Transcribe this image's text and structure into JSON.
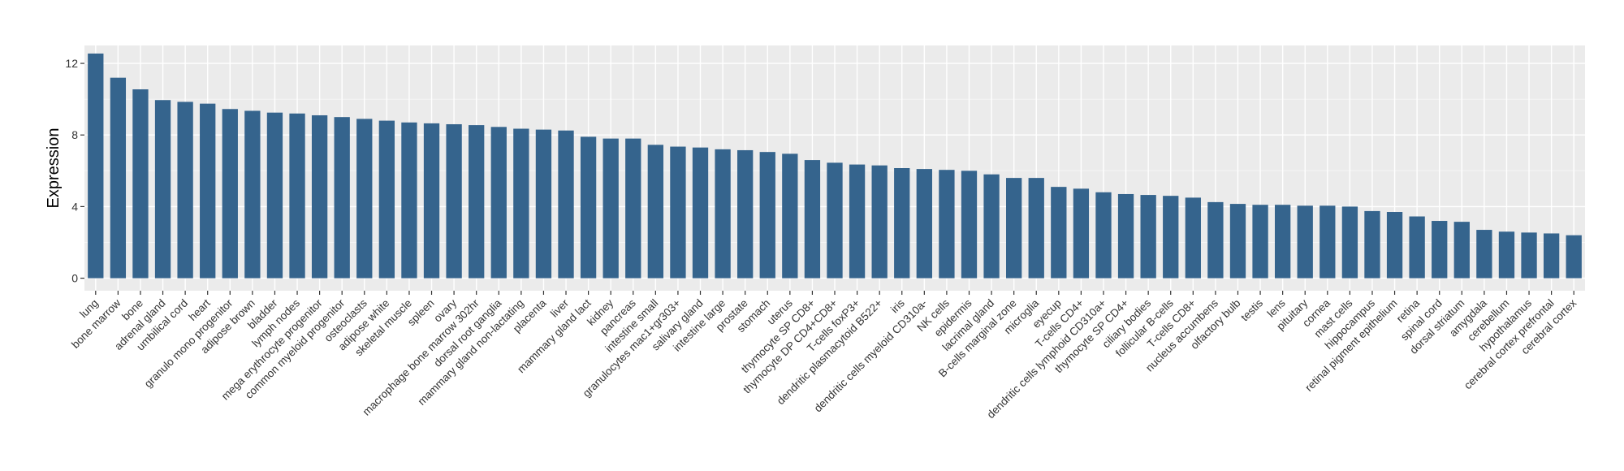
{
  "chart_data": {
    "type": "bar",
    "title": "",
    "xlabel": "",
    "ylabel": "Expression",
    "ylim": [
      -0.7,
      13.0
    ],
    "yticks": [
      0,
      4,
      8,
      12
    ],
    "ytick_labels": [
      "0",
      "4",
      "8",
      "12"
    ],
    "grid": true,
    "background": "#EBEBEB",
    "bar_color": "#35648D",
    "categories": [
      "lung",
      "bone marrow",
      "bone",
      "adrenal gland",
      "umbilical cord",
      "heart",
      "granulo mono progenitor",
      "adipose brown",
      "bladder",
      "lymph nodes",
      "mega erythrocyte progenitor",
      "common myeloid progenitor",
      "osteoclasts",
      "adipose white",
      "skeletal muscle",
      "spleen",
      "ovary",
      "macrophage bone marrow 302hr",
      "dorsal root ganglia",
      "mammary gland non-lactating",
      "placenta",
      "liver",
      "mammary gland  lact",
      "kidney",
      "pancreas",
      "intestine small",
      "granulocytes mac1+gr303+",
      "salivary gland",
      "intestine large",
      "prostate",
      "stomach",
      "uterus",
      "thymocyte SP CD8+",
      "thymocyte DP CD4+CD8+",
      "T-cells foxP3+",
      "dendritic plasmacytoid B522+",
      "iris",
      "dendritic cells myeloid CD310a-",
      "NK cells",
      "epidermis",
      "lacrimal gland",
      "B-cells marginal zone",
      "microglia",
      "eyecup",
      "T-cells CD4+",
      "dendritic cells lymphoid CD310a+",
      "thymocyte SP CD4+",
      "ciliary bodies",
      "follicular B-cells",
      "T-cells CD8+",
      "nucleus accumbens",
      "olfactory bulb",
      "testis",
      "lens",
      "pituitary",
      "cornea",
      "mast cells",
      "hippocampus",
      "retinal pigment epithelium",
      "retina",
      "spinal cord",
      "dorsal striatum",
      "amygdala",
      "cerebellum",
      "hypothalamus",
      "cerebral cortex prefrontal",
      "cerebral cortex"
    ],
    "values": [
      12.55,
      11.2,
      10.55,
      9.95,
      9.85,
      9.75,
      9.45,
      9.35,
      9.25,
      9.2,
      9.1,
      9.0,
      8.9,
      8.8,
      8.7,
      8.65,
      8.6,
      8.55,
      8.45,
      8.35,
      8.3,
      8.25,
      7.9,
      7.8,
      7.8,
      7.45,
      7.35,
      7.3,
      7.2,
      7.15,
      7.05,
      6.95,
      6.6,
      6.45,
      6.35,
      6.3,
      6.15,
      6.1,
      6.05,
      6.0,
      5.8,
      5.6,
      5.6,
      5.1,
      5.0,
      4.8,
      4.7,
      4.65,
      4.6,
      4.5,
      4.25,
      4.15,
      4.1,
      4.1,
      4.05,
      4.05,
      4.0,
      3.75,
      3.7,
      3.45,
      3.2,
      3.15,
      2.7,
      2.6,
      2.55,
      2.5,
      2.4
    ]
  }
}
